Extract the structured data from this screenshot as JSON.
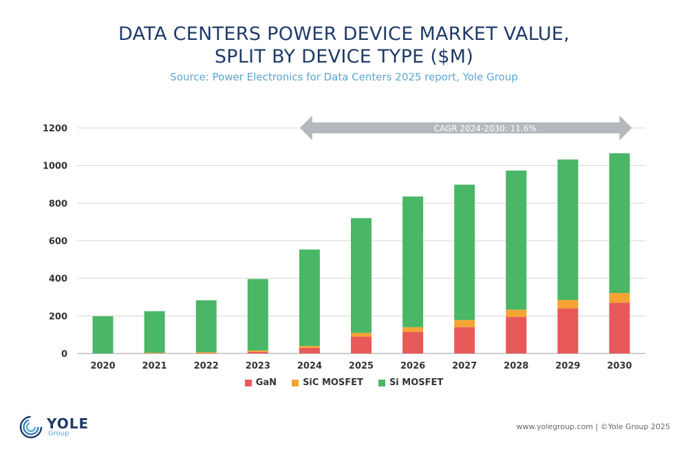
{
  "header": {
    "title_line1": "DATA CENTERS POWER DEVICE MARKET VALUE,",
    "title_line2": "SPLIT BY DEVICE TYPE ($M)",
    "subtitle": "Source: Power Electronics for Data Centers 2025 report, Yole Group"
  },
  "colors": {
    "gan": "#e8595a",
    "sic": "#f5a434",
    "si": "#49b766",
    "arrow": "#b3b9be",
    "title": "#1f3a68",
    "subtitle": "#5aa6cf"
  },
  "chart_data": {
    "type": "bar",
    "stacked": true,
    "title": "DATA CENTERS POWER DEVICE MARKET VALUE, SPLIT BY DEVICE TYPE ($M)",
    "categories": [
      "2020",
      "2021",
      "2022",
      "2023",
      "2024",
      "2025",
      "2026",
      "2027",
      "2028",
      "2029",
      "2030"
    ],
    "series": [
      {
        "name": "GaN",
        "values": [
          0,
          1,
          2,
          8,
          30,
          90,
          115,
          140,
          195,
          240,
          270
        ]
      },
      {
        "name": "SiC MOSFET",
        "values": [
          0,
          3,
          5,
          8,
          10,
          20,
          25,
          38,
          38,
          45,
          52
        ]
      },
      {
        "name": "Si MOSFET",
        "values": [
          198,
          221,
          276,
          380,
          513,
          610,
          695,
          720,
          740,
          747,
          743
        ]
      }
    ],
    "ylim": [
      0,
      1200
    ],
    "yticks": [
      0,
      200,
      400,
      600,
      800,
      1000,
      1200
    ],
    "grid": true,
    "legend_position": "bottom",
    "annotation": {
      "text": "CAGR 2024-2030:  11.6%",
      "from": "2024",
      "to": "2030"
    }
  },
  "footer": {
    "logo_name": "YOLE",
    "logo_sub": "Group",
    "credit": "www.yolegroup.com | ©Yole Group 2025"
  }
}
